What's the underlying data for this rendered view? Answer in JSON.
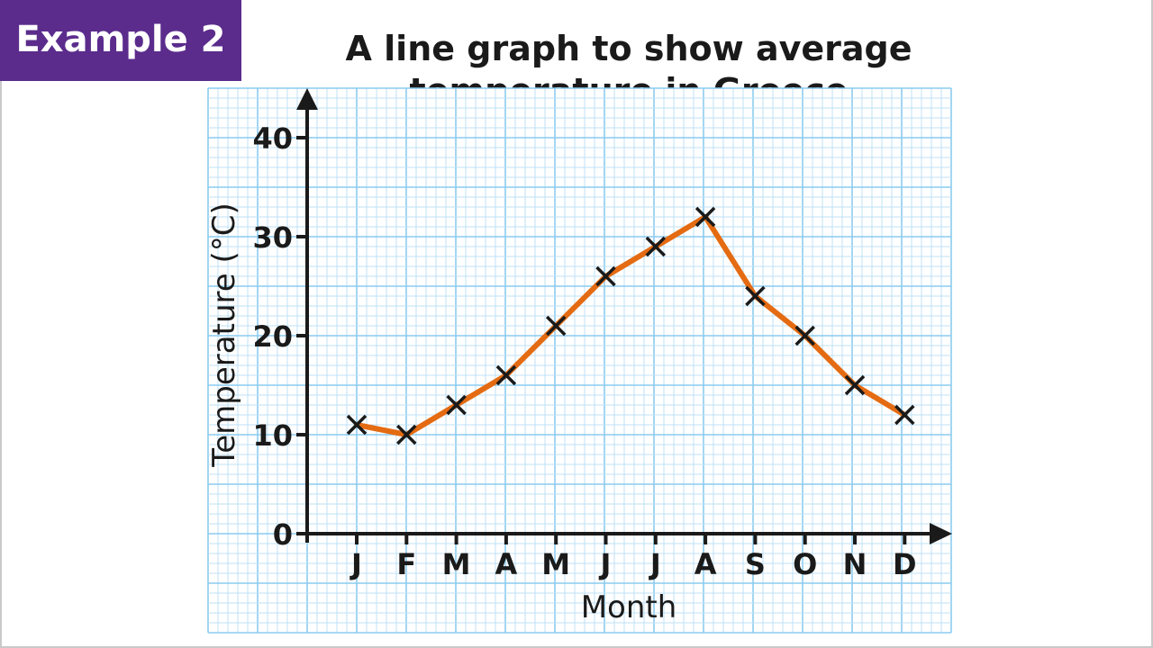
{
  "badge": {
    "label": "Example 2"
  },
  "colors": {
    "badge_bg": "#5b2c8c",
    "grid_minor": "#bfe0f5",
    "grid_major": "#8ccbef",
    "line": "#e46b12",
    "marker": "#1a1a1a",
    "axis": "#1a1a1a"
  },
  "chart_data": {
    "type": "line",
    "title_line1": "A line graph to show average",
    "title_line2": "temperature in Greece",
    "xlabel": "Month",
    "ylabel": "Temperature (°C)",
    "categories": [
      "J",
      "F",
      "M",
      "A",
      "M",
      "J",
      "J",
      "A",
      "S",
      "O",
      "N",
      "D"
    ],
    "series": [
      {
        "values": [
          11,
          10,
          13,
          16,
          21,
          26,
          29,
          32,
          24,
          20,
          15,
          12
        ]
      }
    ],
    "ylim": [
      0,
      40
    ],
    "yticks": [
      "0",
      "10",
      "20",
      "30",
      "40"
    ],
    "grid": true,
    "markers": "cross"
  }
}
